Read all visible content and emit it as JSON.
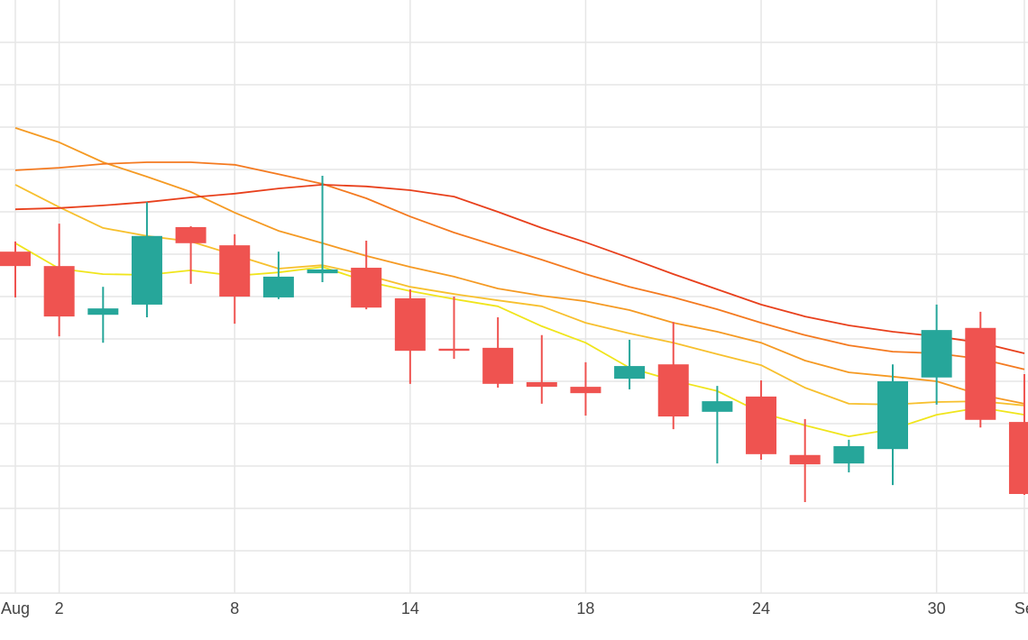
{
  "chart_data": {
    "type": "candlestick",
    "categories": [
      "Aug",
      "2",
      null,
      null,
      null,
      "8",
      null,
      null,
      null,
      "14",
      null,
      null,
      null,
      "18",
      null,
      null,
      null,
      "24",
      null,
      null,
      null,
      "30",
      null,
      "Se"
    ],
    "open": [
      8.06,
      7.72,
      6.57,
      6.81,
      8.64,
      8.21,
      6.98,
      7.55,
      7.68,
      6.96,
      5.77,
      5.79,
      4.98,
      4.87,
      5.06,
      5.4,
      4.28,
      4.64,
      3.26,
      3.06,
      3.4,
      5.09,
      6.26,
      4.04
    ],
    "high": [
      8.3,
      8.72,
      7.23,
      9.23,
      8.66,
      8.47,
      8.06,
      9.85,
      8.32,
      7.17,
      7.0,
      6.51,
      6.09,
      5.45,
      5.98,
      6.4,
      4.89,
      5.02,
      4.11,
      3.62,
      5.4,
      6.81,
      6.64,
      5.17
    ],
    "low": [
      6.98,
      6.06,
      5.91,
      6.51,
      7.3,
      6.36,
      6.94,
      7.34,
      6.7,
      4.94,
      5.53,
      4.85,
      4.47,
      4.19,
      4.81,
      3.87,
      3.06,
      3.15,
      2.15,
      2.85,
      2.55,
      4.45,
      3.91,
      2.32
    ],
    "close": [
      7.72,
      6.53,
      6.72,
      8.43,
      8.26,
      7.0,
      7.47,
      7.64,
      6.74,
      5.72,
      5.72,
      4.94,
      4.87,
      4.72,
      5.36,
      4.17,
      4.53,
      3.28,
      3.04,
      3.47,
      5.0,
      6.21,
      4.09,
      2.34
    ],
    "increasing_color": "#26a69a",
    "decreasing_color": "#ef5350",
    "lines": [
      {
        "color": "#f0e51c",
        "values": [
          8.26,
          7.66,
          7.53,
          7.51,
          7.62,
          7.49,
          7.57,
          7.7,
          7.36,
          7.13,
          6.94,
          6.77,
          6.3,
          5.91,
          5.32,
          5.02,
          4.77,
          4.26,
          3.96,
          3.7,
          3.87,
          4.21,
          4.38,
          4.21
        ]
      },
      {
        "color": "#f7c02e",
        "values": [
          9.64,
          9.11,
          8.62,
          8.43,
          8.3,
          7.98,
          7.66,
          7.74,
          7.51,
          7.23,
          7.06,
          6.91,
          6.77,
          6.38,
          6.13,
          5.91,
          5.64,
          5.38,
          4.85,
          4.47,
          4.45,
          4.51,
          4.53,
          4.43
        ]
      },
      {
        "color": "#f59a23",
        "values": [
          10.98,
          10.64,
          10.17,
          9.83,
          9.47,
          8.98,
          8.55,
          8.26,
          7.96,
          7.7,
          7.47,
          7.19,
          7.02,
          6.89,
          6.68,
          6.38,
          6.17,
          5.91,
          5.49,
          5.21,
          5.11,
          5.0,
          4.68,
          4.47
        ]
      },
      {
        "color": "#f47a20",
        "values": [
          9.98,
          10.04,
          10.13,
          10.17,
          10.17,
          10.11,
          9.89,
          9.66,
          9.32,
          8.89,
          8.51,
          8.19,
          7.87,
          7.53,
          7.23,
          6.98,
          6.7,
          6.38,
          6.09,
          5.85,
          5.7,
          5.66,
          5.53,
          5.28
        ]
      },
      {
        "color": "#e8401c",
        "values": [
          9.06,
          9.09,
          9.15,
          9.23,
          9.34,
          9.43,
          9.55,
          9.64,
          9.6,
          9.51,
          9.36,
          9.0,
          8.62,
          8.28,
          7.91,
          7.53,
          7.17,
          6.81,
          6.53,
          6.32,
          6.17,
          6.06,
          5.91,
          5.66
        ]
      }
    ],
    "ylim": [
      0,
      14
    ],
    "yticks": [
      0,
      1,
      2,
      3,
      4,
      5,
      6,
      7,
      8,
      9,
      10,
      11,
      12,
      13
    ],
    "grid": true
  }
}
